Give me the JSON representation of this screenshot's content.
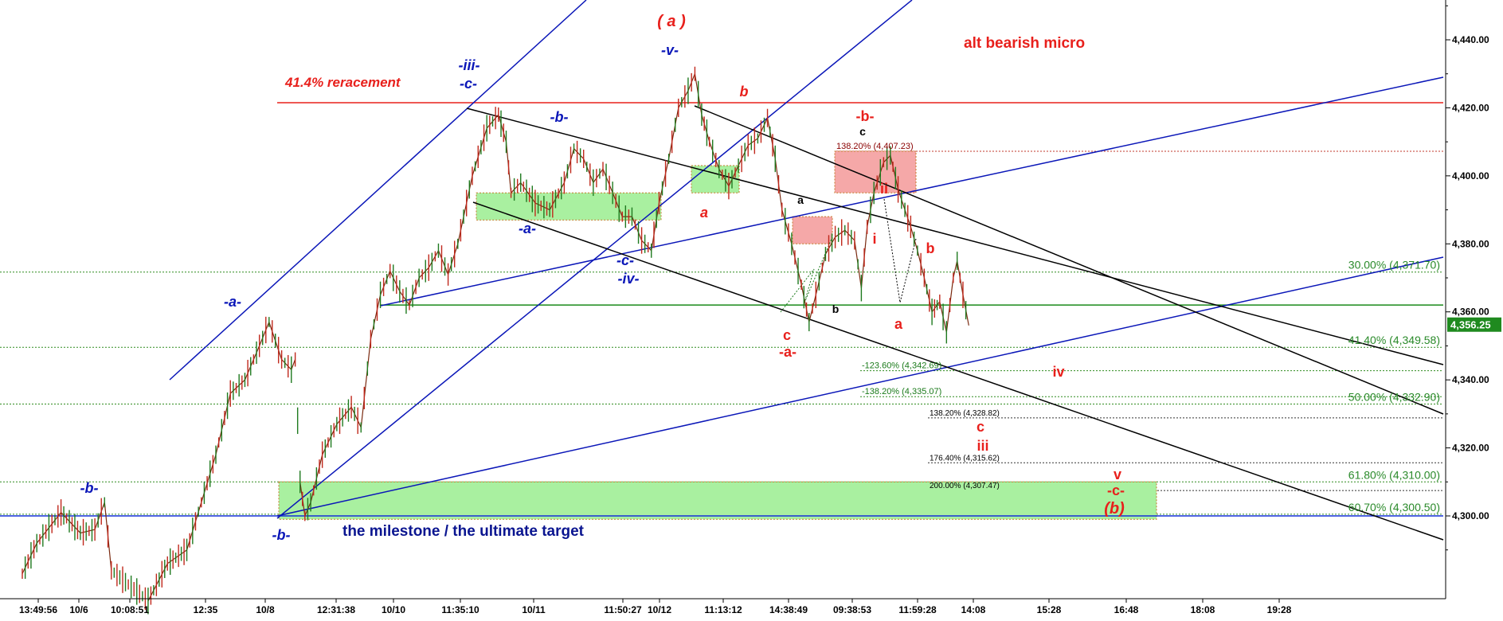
{
  "chart_data": {
    "type": "line",
    "subtype": "candlestick-price-chart",
    "colors": {
      "red": "#e8201c",
      "blue": "#0a16b8",
      "green": "#2e8b1e",
      "black": "#000000",
      "green_zone": "#a9f0a0",
      "red_zone": "#f5a8a8",
      "price_badge": "#1f8a1f"
    },
    "y_axis": {
      "position": "right",
      "ticks": [
        "4,440.00",
        "4,420.00",
        "4,400.00",
        "4,380.00",
        "4,360.00",
        "4,340.00",
        "4,320.00",
        "4,300.00"
      ],
      "tick_values": [
        4440,
        4420,
        4400,
        4380,
        4360,
        4340,
        4320,
        4300
      ],
      "range": [
        4280,
        4450
      ],
      "last_price": 4356.25,
      "last_price_label": "4,356.25"
    },
    "x_axis": {
      "tick_labels": [
        "13:49:56",
        "10/6",
        "10:08:51",
        "12:35",
        "10/8",
        "12:31:38",
        "10/10",
        "11:35:10",
        "10/11",
        "11:50:27",
        "10/12",
        "11:13:12",
        "14:38:49",
        "09:38:53",
        "11:59:28",
        "14:08",
        "15:28",
        "16:48",
        "18:08",
        "19:28"
      ]
    },
    "horizontal_levels": [
      {
        "label": "30.00% (4,371.70)",
        "value": 4371.7
      },
      {
        "label": "41.40% (4,349.58)",
        "value": 4349.58
      },
      {
        "label": "50.00% (4,332.90)",
        "value": 4332.9
      },
      {
        "label": "61.80% (4,310.00)",
        "value": 4310.0
      },
      {
        "label": "60.70% (4,300.50)",
        "value": 4300.5
      }
    ],
    "projection_levels_green": [
      {
        "label": "-123.60% (4,342.69)",
        "value": 4342.69
      },
      {
        "label": "-138.20% (4,335.07)",
        "value": 4335.07
      }
    ],
    "projection_levels_black": [
      {
        "label": "138.20% (4,328.82)",
        "value": 4328.82
      },
      {
        "label": "176.40% (4,315.62)",
        "value": 4315.62
      },
      {
        "label": "200.00% (4,307.47)",
        "value": 4307.47
      }
    ],
    "top_level_label": "138.20% (4,407.23)",
    "top_level_value": 4407.23,
    "retracement_label": "41.4% reracement",
    "retracement_value": 4421.5,
    "green_line_value": 4362,
    "blue_line_value": 4300,
    "annotations": {
      "title_red": "alt bearish micro",
      "milestone": "the milestone / the ultimate target"
    },
    "wave_labels_blue": [
      "-b-",
      "-a-",
      "-b-",
      "-iii-",
      "-c-",
      "-b-",
      "-a-",
      "-c-",
      "-iv-",
      "-v-"
    ],
    "wave_labels_red": [
      "( a )",
      "b",
      "a",
      "c",
      "-a-",
      "-b-",
      "ii",
      "i",
      "b",
      "a",
      "iv",
      "c",
      "iii",
      "v",
      "-c-",
      "(b)"
    ],
    "wave_labels_black": [
      "a",
      "b",
      "c"
    ],
    "price_path": [
      [
        0,
        4283
      ],
      [
        15,
        4292
      ],
      [
        40,
        4301
      ],
      [
        60,
        4295
      ],
      [
        75,
        4296
      ],
      [
        85,
        4304
      ],
      [
        92,
        4284
      ],
      [
        130,
        4275
      ],
      [
        150,
        4286
      ],
      [
        170,
        4290
      ],
      [
        185,
        4304
      ],
      [
        200,
        4318
      ],
      [
        215,
        4336
      ],
      [
        230,
        4340
      ],
      [
        245,
        4350
      ],
      [
        255,
        4357
      ],
      [
        268,
        4346
      ],
      [
        278,
        4343
      ],
      [
        282,
        4346
      ],
      [
        287,
        4310
      ],
      [
        292,
        4300
      ],
      [
        298,
        4304
      ],
      [
        310,
        4318
      ],
      [
        325,
        4327
      ],
      [
        340,
        4332
      ],
      [
        350,
        4326
      ],
      [
        360,
        4352
      ],
      [
        370,
        4365
      ],
      [
        380,
        4372
      ],
      [
        390,
        4366
      ],
      [
        400,
        4362
      ],
      [
        410,
        4370
      ],
      [
        420,
        4373
      ],
      [
        430,
        4378
      ],
      [
        440,
        4371
      ],
      [
        450,
        4380
      ],
      [
        465,
        4400
      ],
      [
        480,
        4414
      ],
      [
        492,
        4418
      ],
      [
        500,
        4410
      ],
      [
        505,
        4395
      ],
      [
        515,
        4398
      ],
      [
        530,
        4392
      ],
      [
        545,
        4390
      ],
      [
        560,
        4398
      ],
      [
        570,
        4408
      ],
      [
        580,
        4405
      ],
      [
        590,
        4398
      ],
      [
        600,
        4402
      ],
      [
        610,
        4395
      ],
      [
        620,
        4388
      ],
      [
        630,
        4388
      ],
      [
        640,
        4381
      ],
      [
        650,
        4378
      ],
      [
        658,
        4392
      ],
      [
        668,
        4405
      ],
      [
        678,
        4420
      ],
      [
        688,
        4425
      ],
      [
        695,
        4430
      ],
      [
        702,
        4418
      ],
      [
        710,
        4410
      ],
      [
        720,
        4402
      ],
      [
        730,
        4397
      ],
      [
        740,
        4403
      ],
      [
        750,
        4409
      ],
      [
        760,
        4411
      ],
      [
        770,
        4417
      ],
      [
        778,
        4405
      ],
      [
        785,
        4390
      ],
      [
        795,
        4380
      ],
      [
        805,
        4368
      ],
      [
        813,
        4357
      ],
      [
        820,
        4365
      ],
      [
        830,
        4377
      ],
      [
        840,
        4382
      ],
      [
        850,
        4384
      ],
      [
        860,
        4381
      ],
      [
        867,
        4367
      ],
      [
        873,
        4385
      ],
      [
        880,
        4395
      ],
      [
        890,
        4404
      ],
      [
        897,
        4406
      ],
      [
        905,
        4396
      ],
      [
        912,
        4390
      ],
      [
        918,
        4385
      ],
      [
        925,
        4378
      ],
      [
        932,
        4370
      ],
      [
        940,
        4360
      ],
      [
        948,
        4363
      ],
      [
        955,
        4354
      ],
      [
        962,
        4370
      ],
      [
        966,
        4375
      ],
      [
        972,
        4365
      ],
      [
        978,
        4356
      ]
    ],
    "zones": [
      {
        "kind": "green",
        "from_value": 4310,
        "to_value": 4299
      },
      {
        "kind": "green",
        "from_value": 4395,
        "to_value": 4387
      },
      {
        "kind": "green",
        "from_value": 4403,
        "to_value": 4395
      },
      {
        "kind": "red",
        "from_value": 4388,
        "to_value": 4380
      },
      {
        "kind": "red",
        "from_value": 4407.23,
        "to_value": 4395
      }
    ]
  }
}
